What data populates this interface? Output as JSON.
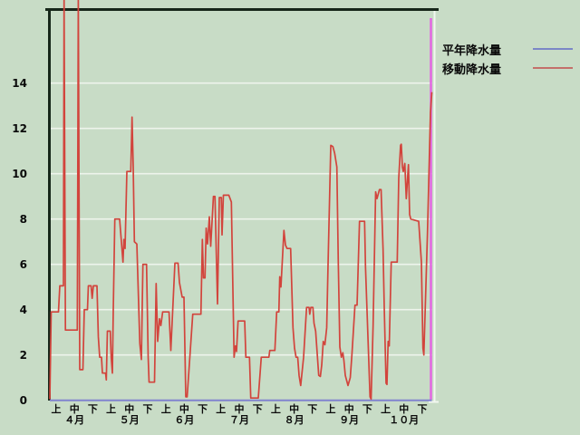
{
  "window": {
    "title": ""
  },
  "legend": {
    "items": [
      {
        "label": "平年降水量",
        "color": "#7b87c6"
      },
      {
        "label": "移動降水量",
        "color": "#c4706a"
      }
    ]
  },
  "colors": {
    "background": "#c8dcc6",
    "frame_dark": "#17271a",
    "gridline": "#eef4ec",
    "highlight_white": "#f2f7f0",
    "cursor_magenta": "#e266e2",
    "normal_line": "#8083cf",
    "moving_line": "#d2443c",
    "text": "#0a0a0a"
  },
  "chart_data": {
    "type": "line",
    "title": "",
    "y_axis": {
      "ticks": [
        0,
        2,
        4,
        6,
        8,
        10,
        12,
        14
      ],
      "visible_max": 14,
      "ylim": [
        0,
        17.2
      ]
    },
    "x_axis": {
      "months": [
        "４月",
        "５月",
        "６月",
        "７月",
        "８月",
        "９月",
        "１０月"
      ],
      "periods": [
        "上",
        "中",
        "下"
      ]
    },
    "grid": true,
    "legend_position": "top-right",
    "series": [
      {
        "name": "平年降水量",
        "color": "#8083cf",
        "points": [
          [
            55,
            0
          ],
          [
            476.5,
            0
          ]
        ]
      },
      {
        "name": "移動降水量",
        "color": "#d2443c",
        "points": [
          [
            55,
            0.05
          ],
          [
            56.5,
            3.9
          ],
          [
            64.5,
            3.9
          ],
          [
            66,
            5.05
          ],
          [
            70,
            5.05
          ],
          [
            70.7,
            17.8
          ],
          [
            72.2,
            3.1
          ],
          [
            85.3,
            3.1
          ],
          [
            86.4,
            17.8
          ],
          [
            88,
            1.35
          ],
          [
            91.5,
            1.35
          ],
          [
            93,
            4.0
          ],
          [
            96.5,
            4.0
          ],
          [
            97.5,
            5.05
          ],
          [
            100.5,
            5.05
          ],
          [
            101.7,
            4.5
          ],
          [
            103,
            5.05
          ],
          [
            107,
            5.05
          ],
          [
            108.5,
            2.8
          ],
          [
            110,
            1.9
          ],
          [
            112,
            1.9
          ],
          [
            113,
            1.2
          ],
          [
            116.5,
            1.2
          ],
          [
            117.3,
            0.9
          ],
          [
            118.5,
            3.05
          ],
          [
            121.7,
            3.05
          ],
          [
            122.7,
            1.9
          ],
          [
            124,
            1.2
          ],
          [
            125,
            4.0
          ],
          [
            126.7,
            8.0
          ],
          [
            132,
            8.0
          ],
          [
            135.7,
            6.1
          ],
          [
            136.7,
            7.1
          ],
          [
            138,
            6.7
          ],
          [
            140,
            10.1
          ],
          [
            144.3,
            10.1
          ],
          [
            145.7,
            12.5
          ],
          [
            147,
            10.3
          ],
          [
            148.3,
            7.0
          ],
          [
            151,
            6.9
          ],
          [
            154.3,
            2.5
          ],
          [
            156,
            1.8
          ],
          [
            157.7,
            6.0
          ],
          [
            161.7,
            6.0
          ],
          [
            163.5,
            1.9
          ],
          [
            164.5,
            0.8
          ],
          [
            170.5,
            0.8
          ],
          [
            172.3,
            5.15
          ],
          [
            174,
            2.6
          ],
          [
            176,
            3.6
          ],
          [
            177.5,
            3.3
          ],
          [
            179.5,
            3.9
          ],
          [
            186.5,
            3.9
          ],
          [
            188.5,
            2.2
          ],
          [
            193,
            6.05
          ],
          [
            196.5,
            6.05
          ],
          [
            198,
            5.2
          ],
          [
            201,
            4.55
          ],
          [
            203,
            4.55
          ],
          [
            205,
            0.15
          ],
          [
            206.5,
            0.15
          ],
          [
            212.7,
            3.8
          ],
          [
            221.7,
            3.8
          ],
          [
            223.3,
            7.1
          ],
          [
            224.5,
            5.4
          ],
          [
            226.2,
            5.4
          ],
          [
            227.5,
            7.6
          ],
          [
            229,
            6.9
          ],
          [
            231,
            8.1
          ],
          [
            232.5,
            6.8
          ],
          [
            235.5,
            9.0
          ],
          [
            237.2,
            9.0
          ],
          [
            240,
            4.25
          ],
          [
            242,
            8.95
          ],
          [
            244.2,
            8.95
          ],
          [
            245,
            7.3
          ],
          [
            246.5,
            9.05
          ],
          [
            252.5,
            9.05
          ],
          [
            255.3,
            8.75
          ],
          [
            258.3,
            1.9
          ],
          [
            259.8,
            2.4
          ],
          [
            261,
            2.15
          ],
          [
            262.7,
            3.5
          ],
          [
            270,
            3.5
          ],
          [
            271.3,
            1.9
          ],
          [
            275.3,
            1.9
          ],
          [
            276.7,
            0.1
          ],
          [
            285,
            0.1
          ],
          [
            288.3,
            1.9
          ],
          [
            296.7,
            1.9
          ],
          [
            297.7,
            2.2
          ],
          [
            303.3,
            2.2
          ],
          [
            305.3,
            3.9
          ],
          [
            307.7,
            3.9
          ],
          [
            308.7,
            5.45
          ],
          [
            310,
            5.0
          ],
          [
            313.3,
            7.5
          ],
          [
            315,
            6.85
          ],
          [
            316.7,
            6.7
          ],
          [
            320.7,
            6.7
          ],
          [
            323.3,
            3.2
          ],
          [
            325,
            2.3
          ],
          [
            326.7,
            1.9
          ],
          [
            328.5,
            1.9
          ],
          [
            330,
            1.1
          ],
          [
            331.8,
            0.65
          ],
          [
            335,
            1.9
          ],
          [
            338.3,
            4.1
          ],
          [
            341,
            4.1
          ],
          [
            341.8,
            3.8
          ],
          [
            343,
            4.1
          ],
          [
            345.3,
            4.1
          ],
          [
            346.5,
            3.4
          ],
          [
            348.3,
            3.05
          ],
          [
            351.7,
            1.1
          ],
          [
            353.5,
            1.05
          ],
          [
            355,
            1.55
          ],
          [
            356.7,
            2.6
          ],
          [
            358.5,
            2.45
          ],
          [
            360.5,
            3.2
          ],
          [
            362,
            6.0
          ],
          [
            365,
            11.25
          ],
          [
            367.3,
            11.2
          ],
          [
            369.3,
            10.9
          ],
          [
            371.7,
            10.3
          ],
          [
            373.3,
            6.05
          ],
          [
            375,
            2.35
          ],
          [
            376.7,
            1.9
          ],
          [
            378.3,
            2.1
          ],
          [
            379.5,
            1.75
          ],
          [
            381,
            1.1
          ],
          [
            384,
            0.65
          ],
          [
            386.5,
            1.0
          ],
          [
            388.3,
            2.0
          ],
          [
            391.7,
            4.2
          ],
          [
            394,
            4.2
          ],
          [
            396.7,
            7.9
          ],
          [
            402.3,
            7.9
          ],
          [
            403.3,
            5.9
          ],
          [
            408.3,
            0.15
          ],
          [
            409.5,
            0.05
          ],
          [
            411.7,
            3.3
          ],
          [
            414.5,
            9.2
          ],
          [
            416,
            8.9
          ],
          [
            418.7,
            9.3
          ],
          [
            420.5,
            9.3
          ],
          [
            422.7,
            6.65
          ],
          [
            424,
            4.1
          ],
          [
            426,
            0.75
          ],
          [
            427,
            0.7
          ],
          [
            428.3,
            2.6
          ],
          [
            429.5,
            2.4
          ],
          [
            431.7,
            6.1
          ],
          [
            438.3,
            6.1
          ],
          [
            440,
            9.8
          ],
          [
            442,
            11.25
          ],
          [
            442.8,
            11.3
          ],
          [
            444,
            10.3
          ],
          [
            445,
            10.1
          ],
          [
            446.7,
            10.45
          ],
          [
            448.3,
            8.9
          ],
          [
            450.7,
            10.4
          ],
          [
            452,
            8.2
          ],
          [
            453.3,
            8.0
          ],
          [
            457.5,
            7.95
          ],
          [
            462,
            7.9
          ],
          [
            465,
            6.1
          ],
          [
            466.7,
            2.3
          ],
          [
            467.7,
            2.0
          ],
          [
            471.7,
            7.4
          ],
          [
            475,
            12.7
          ],
          [
            476.5,
            13.6
          ]
        ]
      }
    ]
  }
}
